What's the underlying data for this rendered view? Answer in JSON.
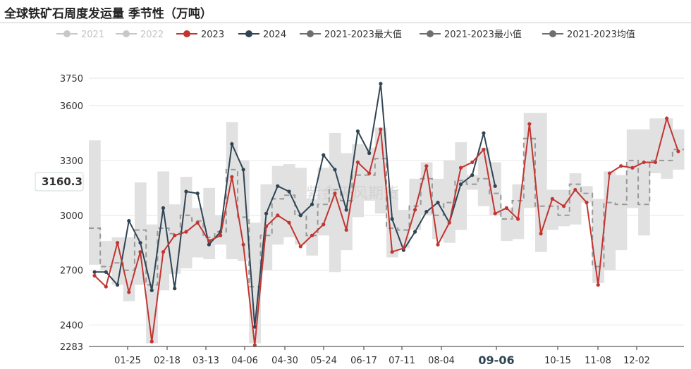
{
  "page_title": "全球铁矿石周度发运量 季节性（万吨）",
  "watermark": "紫金天风期货",
  "axis_pointer": {
    "y_value": "3160.3",
    "x_value": "09-06"
  },
  "colors": {
    "s2021": "#c8c8c8",
    "s2022": "#c8c8c8",
    "s2023": "#c23531",
    "s2024": "#2f4554",
    "band": "#e1e1e1",
    "avg": "#999999",
    "max_min_icon": "#6e6e6e"
  },
  "chart_data": {
    "type": "line",
    "ylim": [
      2283,
      3750
    ],
    "yticks": [
      2283,
      2400,
      2700,
      3000,
      3300,
      3600,
      3750
    ],
    "xticks": [
      "01-25",
      "02-18",
      "03-13",
      "04-06",
      "04-30",
      "05-24",
      "06-17",
      "07-11",
      "08-04",
      "09-06",
      "10-15",
      "11-08",
      "12-02"
    ],
    "legend": [
      {
        "name": "2021",
        "active": false
      },
      {
        "name": "2022",
        "active": false
      },
      {
        "name": "2023",
        "active": true
      },
      {
        "name": "2024",
        "active": true
      },
      {
        "name": "2021-2023最大值",
        "active": true
      },
      {
        "name": "2021-2023最小值",
        "active": true
      },
      {
        "name": "2021-2023均值",
        "active": true
      }
    ],
    "weeks": 52,
    "series": [
      {
        "name": "2023",
        "values": [
          2670,
          2610,
          2850,
          2580,
          2800,
          2310,
          2800,
          2890,
          2910,
          2960,
          2860,
          2890,
          3210,
          2840,
          2290,
          2940,
          3000,
          2960,
          2830,
          2890,
          2950,
          3120,
          2920,
          3290,
          3230,
          3470,
          2800,
          2820,
          3030,
          3270,
          2840,
          2960,
          3260,
          3290,
          3360,
          3010,
          3040,
          2980,
          3500,
          2900,
          3090,
          3050,
          3140,
          3070,
          2620,
          3230,
          3270,
          3260,
          3290,
          3290,
          3530,
          3350
        ]
      },
      {
        "name": "2024",
        "values": [
          2690,
          2690,
          2620,
          2970,
          2850,
          2590,
          3040,
          2600,
          3130,
          3120,
          2840,
          2910,
          3390,
          3250,
          2390,
          3010,
          3160,
          3130,
          3000,
          3060,
          3330,
          3250,
          3030,
          3460,
          3340,
          3720,
          2980,
          2810,
          2910,
          3020,
          3070,
          2960,
          3170,
          3220,
          3450,
          3160
        ]
      },
      {
        "name": "2021-2023最大值",
        "values": [
          3410,
          2860,
          2880,
          2880,
          3180,
          2950,
          3240,
          3060,
          3210,
          3040,
          3150,
          3000,
          3510,
          3300,
          2960,
          3170,
          3270,
          3280,
          3260,
          3090,
          3260,
          3450,
          3340,
          3390,
          3370,
          3480,
          3140,
          3030,
          3200,
          3290,
          3200,
          3300,
          3400,
          3220,
          3370,
          3290,
          3040,
          3170,
          3560,
          3560,
          3140,
          3140,
          3230,
          3160,
          3090,
          3240,
          3220,
          3470,
          3470,
          3530,
          3530,
          3470
        ]
      },
      {
        "name": "2021-2023最小值",
        "values": [
          2730,
          2700,
          2620,
          2530,
          2620,
          2300,
          2590,
          2680,
          2710,
          2770,
          2760,
          2840,
          2760,
          2750,
          2300,
          2700,
          2840,
          2880,
          2840,
          2780,
          2890,
          2690,
          2810,
          2990,
          3080,
          3010,
          2770,
          2820,
          2920,
          3000,
          2870,
          2850,
          2920,
          3140,
          3050,
          3000,
          2860,
          2870,
          3040,
          2800,
          2920,
          2940,
          2950,
          3070,
          2630,
          2700,
          2810,
          3040,
          2890,
          3230,
          3200,
          3250
        ]
      },
      {
        "name": "2021-2023均值",
        "values": [
          2930,
          2720,
          2740,
          2700,
          2920,
          2620,
          2930,
          2900,
          3000,
          2970,
          2880,
          2910,
          3250,
          2990,
          2610,
          2890,
          3090,
          3110,
          3000,
          2890,
          3060,
          3140,
          3080,
          3220,
          3220,
          3310,
          2930,
          2920,
          3050,
          3200,
          3000,
          3070,
          3190,
          3170,
          3200,
          3120,
          2980,
          3080,
          3420,
          3050,
          3050,
          3000,
          3170,
          3120,
          2720,
          3070,
          3060,
          3300,
          3060,
          3300,
          3300,
          3360
        ]
      }
    ]
  }
}
